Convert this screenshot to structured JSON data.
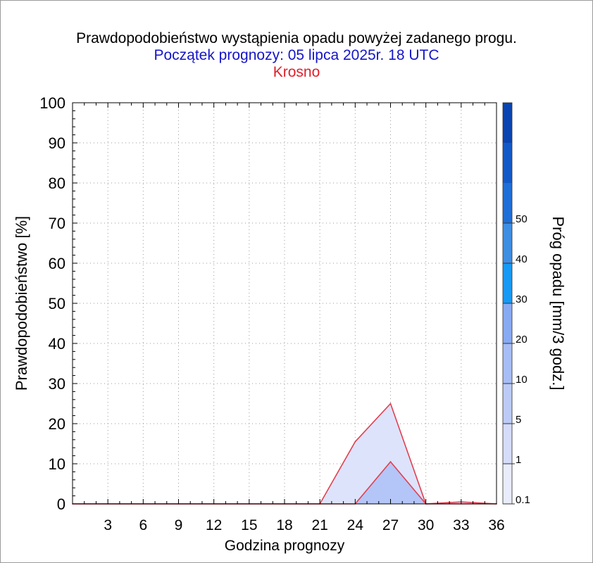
{
  "title": "Prawdopodobieństwo wystąpienia opadu powyżej zadanego progu.",
  "subtitle": "Początek prognozy: 05 lipca 2025r. 18 UTC",
  "location": "Krosno",
  "colors": {
    "title": "#000000",
    "subtitle": "#1515c8",
    "location": "#e0202a",
    "series_line": "#e04050"
  },
  "chart_data": {
    "type": "area",
    "title": "Prawdopodobieństwo wystąpienia opadu powyżej zadanego progu.",
    "xlabel": "Godzina prognozy",
    "ylabel": "Prawdopodobieństwo [%]",
    "xlim": [
      0,
      36
    ],
    "ylim": [
      0,
      100
    ],
    "x_ticks": [
      3,
      6,
      9,
      12,
      15,
      18,
      21,
      24,
      27,
      30,
      33,
      36
    ],
    "y_ticks": [
      0,
      10,
      20,
      30,
      40,
      50,
      60,
      70,
      80,
      90,
      100
    ],
    "grid": true,
    "x": [
      0,
      3,
      6,
      9,
      12,
      15,
      18,
      21,
      24,
      27,
      30,
      33,
      36
    ],
    "series": [
      {
        "threshold": 0.1,
        "color": "#dde3fb",
        "values": [
          0,
          0,
          0,
          0,
          0,
          0,
          0,
          0,
          15.5,
          25,
          0,
          0.5,
          0
        ]
      },
      {
        "threshold": 1,
        "color": "#b4c5f7",
        "values": [
          0,
          0,
          0,
          0,
          0,
          0,
          0,
          0,
          0,
          10.5,
          0,
          0,
          0
        ]
      }
    ],
    "colorbar": {
      "label": "Próg opadu [mm/3 godz.]",
      "ticks": [
        "0.1",
        "1",
        "5",
        "10",
        "20",
        "30",
        "40",
        "50"
      ],
      "colors": [
        "#e9ecfc",
        "#d4dcfa",
        "#bccbf6",
        "#a7bdf5",
        "#88aaf3",
        "#169af5",
        "#3e8ee4",
        "#1e6fd8",
        "#1259c8",
        "#0a44b0"
      ]
    }
  }
}
